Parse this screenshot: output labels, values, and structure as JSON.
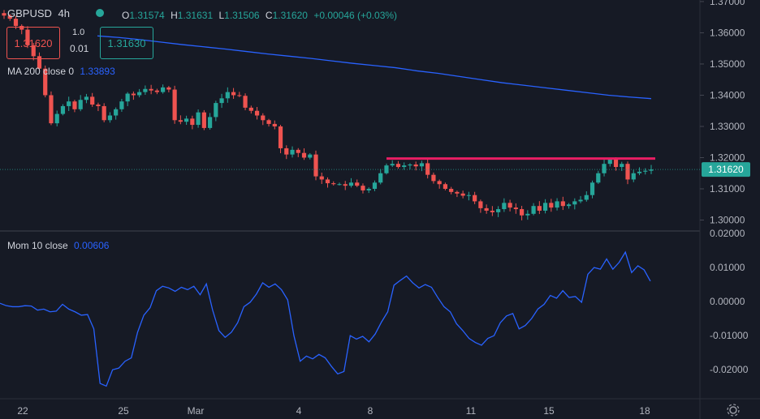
{
  "header": {
    "symbol": "GBPUSD",
    "interval": "4h",
    "open": "1.31574",
    "high": "1.31631",
    "low": "1.31506",
    "close": "1.31620",
    "change": "+0.00046 (+0.03%)"
  },
  "trade": {
    "sell_price": "1.31620",
    "buy_price": "1.31630",
    "lot_top": "1.0",
    "lot_bottom": "0.01"
  },
  "indicators": {
    "ma_label": "MA 200 close 0",
    "ma_value": "1.33893",
    "mom_label": "Mom 10 close",
    "mom_value": "0.00606"
  },
  "price_labels": {
    "last_price": "1.31620"
  },
  "colors": {
    "background": "#161a25",
    "up": "#26a69a",
    "down": "#ef5350",
    "ma_line": "#2962ff",
    "momentum_line": "#2962ff",
    "resistance": "#e91e63"
  },
  "chart_data": [
    {
      "type": "candlestick",
      "symbol": "GBPUSD",
      "timeframe": "4h",
      "ylim": [
        1.2965,
        1.3705
      ],
      "y_ticks": [
        "1.37000",
        "1.36000",
        "1.35000",
        "1.34000",
        "1.33000",
        "1.32000",
        "1.31000",
        "1.30000"
      ],
      "x_ticks": [
        "22",
        "25",
        "Mar",
        "4",
        "8",
        "11",
        "15",
        "18"
      ],
      "close": [
        1.3655,
        1.3645,
        1.3622,
        1.361,
        1.356,
        1.3525,
        1.3485,
        1.34,
        1.331,
        1.334,
        1.3365,
        1.338,
        1.3355,
        1.3385,
        1.3395,
        1.337,
        1.3365,
        1.332,
        1.3335,
        1.3355,
        1.338,
        1.3405,
        1.34,
        1.341,
        1.342,
        1.3415,
        1.341,
        1.3425,
        1.3418,
        1.332,
        1.3315,
        1.3325,
        1.3305,
        1.3345,
        1.3295,
        1.333,
        1.3375,
        1.339,
        1.341,
        1.34,
        1.3398,
        1.336,
        1.335,
        1.3335,
        1.332,
        1.3308,
        1.33,
        1.323,
        1.321,
        1.3225,
        1.3215,
        1.32,
        1.321,
        1.314,
        1.313,
        1.3118,
        1.3115,
        1.3115,
        1.311,
        1.312,
        1.311,
        1.3095,
        1.31,
        1.312,
        1.315,
        1.3175,
        1.318,
        1.317,
        1.3175,
        1.3178,
        1.3172,
        1.3182,
        1.3145,
        1.3125,
        1.3115,
        1.31,
        1.309,
        1.3085,
        1.3078,
        1.308,
        1.306,
        1.3038,
        1.303,
        1.3025,
        1.3035,
        1.3055,
        1.304,
        1.3035,
        1.3015,
        1.302,
        1.3045,
        1.303,
        1.3055,
        1.304,
        1.306,
        1.3045,
        1.305,
        1.306,
        1.3065,
        1.308,
        1.312,
        1.315,
        1.318,
        1.3195,
        1.317,
        1.318,
        1.313,
        1.315,
        1.3155,
        1.3158,
        1.3162
      ],
      "ma200": [
        1.359,
        1.3585,
        1.3578,
        1.357,
        1.3562,
        1.3555,
        1.3548,
        1.354,
        1.3532,
        1.3525,
        1.3518,
        1.351,
        1.3502,
        1.3495,
        1.3488,
        1.3478,
        1.347,
        1.346,
        1.345,
        1.344,
        1.3432,
        1.3424,
        1.3416,
        1.3408,
        1.34,
        1.3394,
        1.3389
      ],
      "resistance_level": 1.3197,
      "last_price": 1.3162
    },
    {
      "type": "line",
      "name": "Mom 10 close",
      "ylim": [
        -0.0285,
        0.02
      ],
      "y_ticks": [
        "0.02000",
        "0.01000",
        "0.00000",
        "-0.01000",
        "-0.02000"
      ],
      "values": [
        -0.0005,
        -0.0012,
        -0.0015,
        -0.0015,
        -0.0012,
        -0.0013,
        -0.0025,
        -0.0022,
        -0.003,
        -0.0028,
        -0.0008,
        -0.0022,
        -0.003,
        -0.004,
        -0.0038,
        -0.008,
        -0.024,
        -0.0248,
        -0.02,
        -0.0195,
        -0.0175,
        -0.0165,
        -0.009,
        -0.004,
        -0.0018,
        0.0032,
        0.0045,
        0.004,
        0.003,
        0.0042,
        0.0035,
        0.0045,
        0.002,
        0.0052,
        -0.0025,
        -0.0085,
        -0.0105,
        -0.009,
        -0.0062,
        -0.0015,
        -0.0002,
        0.0022,
        0.0055,
        0.0042,
        0.0052,
        0.0035,
        0.0005,
        -0.01,
        -0.0175,
        -0.016,
        -0.0168,
        -0.0155,
        -0.0165,
        -0.019,
        -0.0212,
        -0.0205,
        -0.01,
        -0.011,
        -0.0102,
        -0.0118,
        -0.0095,
        -0.006,
        -0.003,
        0.0048,
        0.0062,
        0.0075,
        0.0055,
        0.004,
        0.005,
        0.0042,
        0.0012,
        -0.0015,
        -0.003,
        -0.0065,
        -0.0085,
        -0.0108,
        -0.012,
        -0.0128,
        -0.0108,
        -0.01,
        -0.0062,
        -0.0042,
        -0.0035,
        -0.008,
        -0.007,
        -0.005,
        -0.0022,
        -0.0008,
        0.0018,
        0.001,
        0.0032,
        0.0012,
        0.0015,
        -0.0002,
        0.008,
        0.01,
        0.0095,
        0.0125,
        0.0095,
        0.0115,
        0.0145,
        0.0085,
        0.0105,
        0.0093,
        0.006
      ]
    }
  ]
}
